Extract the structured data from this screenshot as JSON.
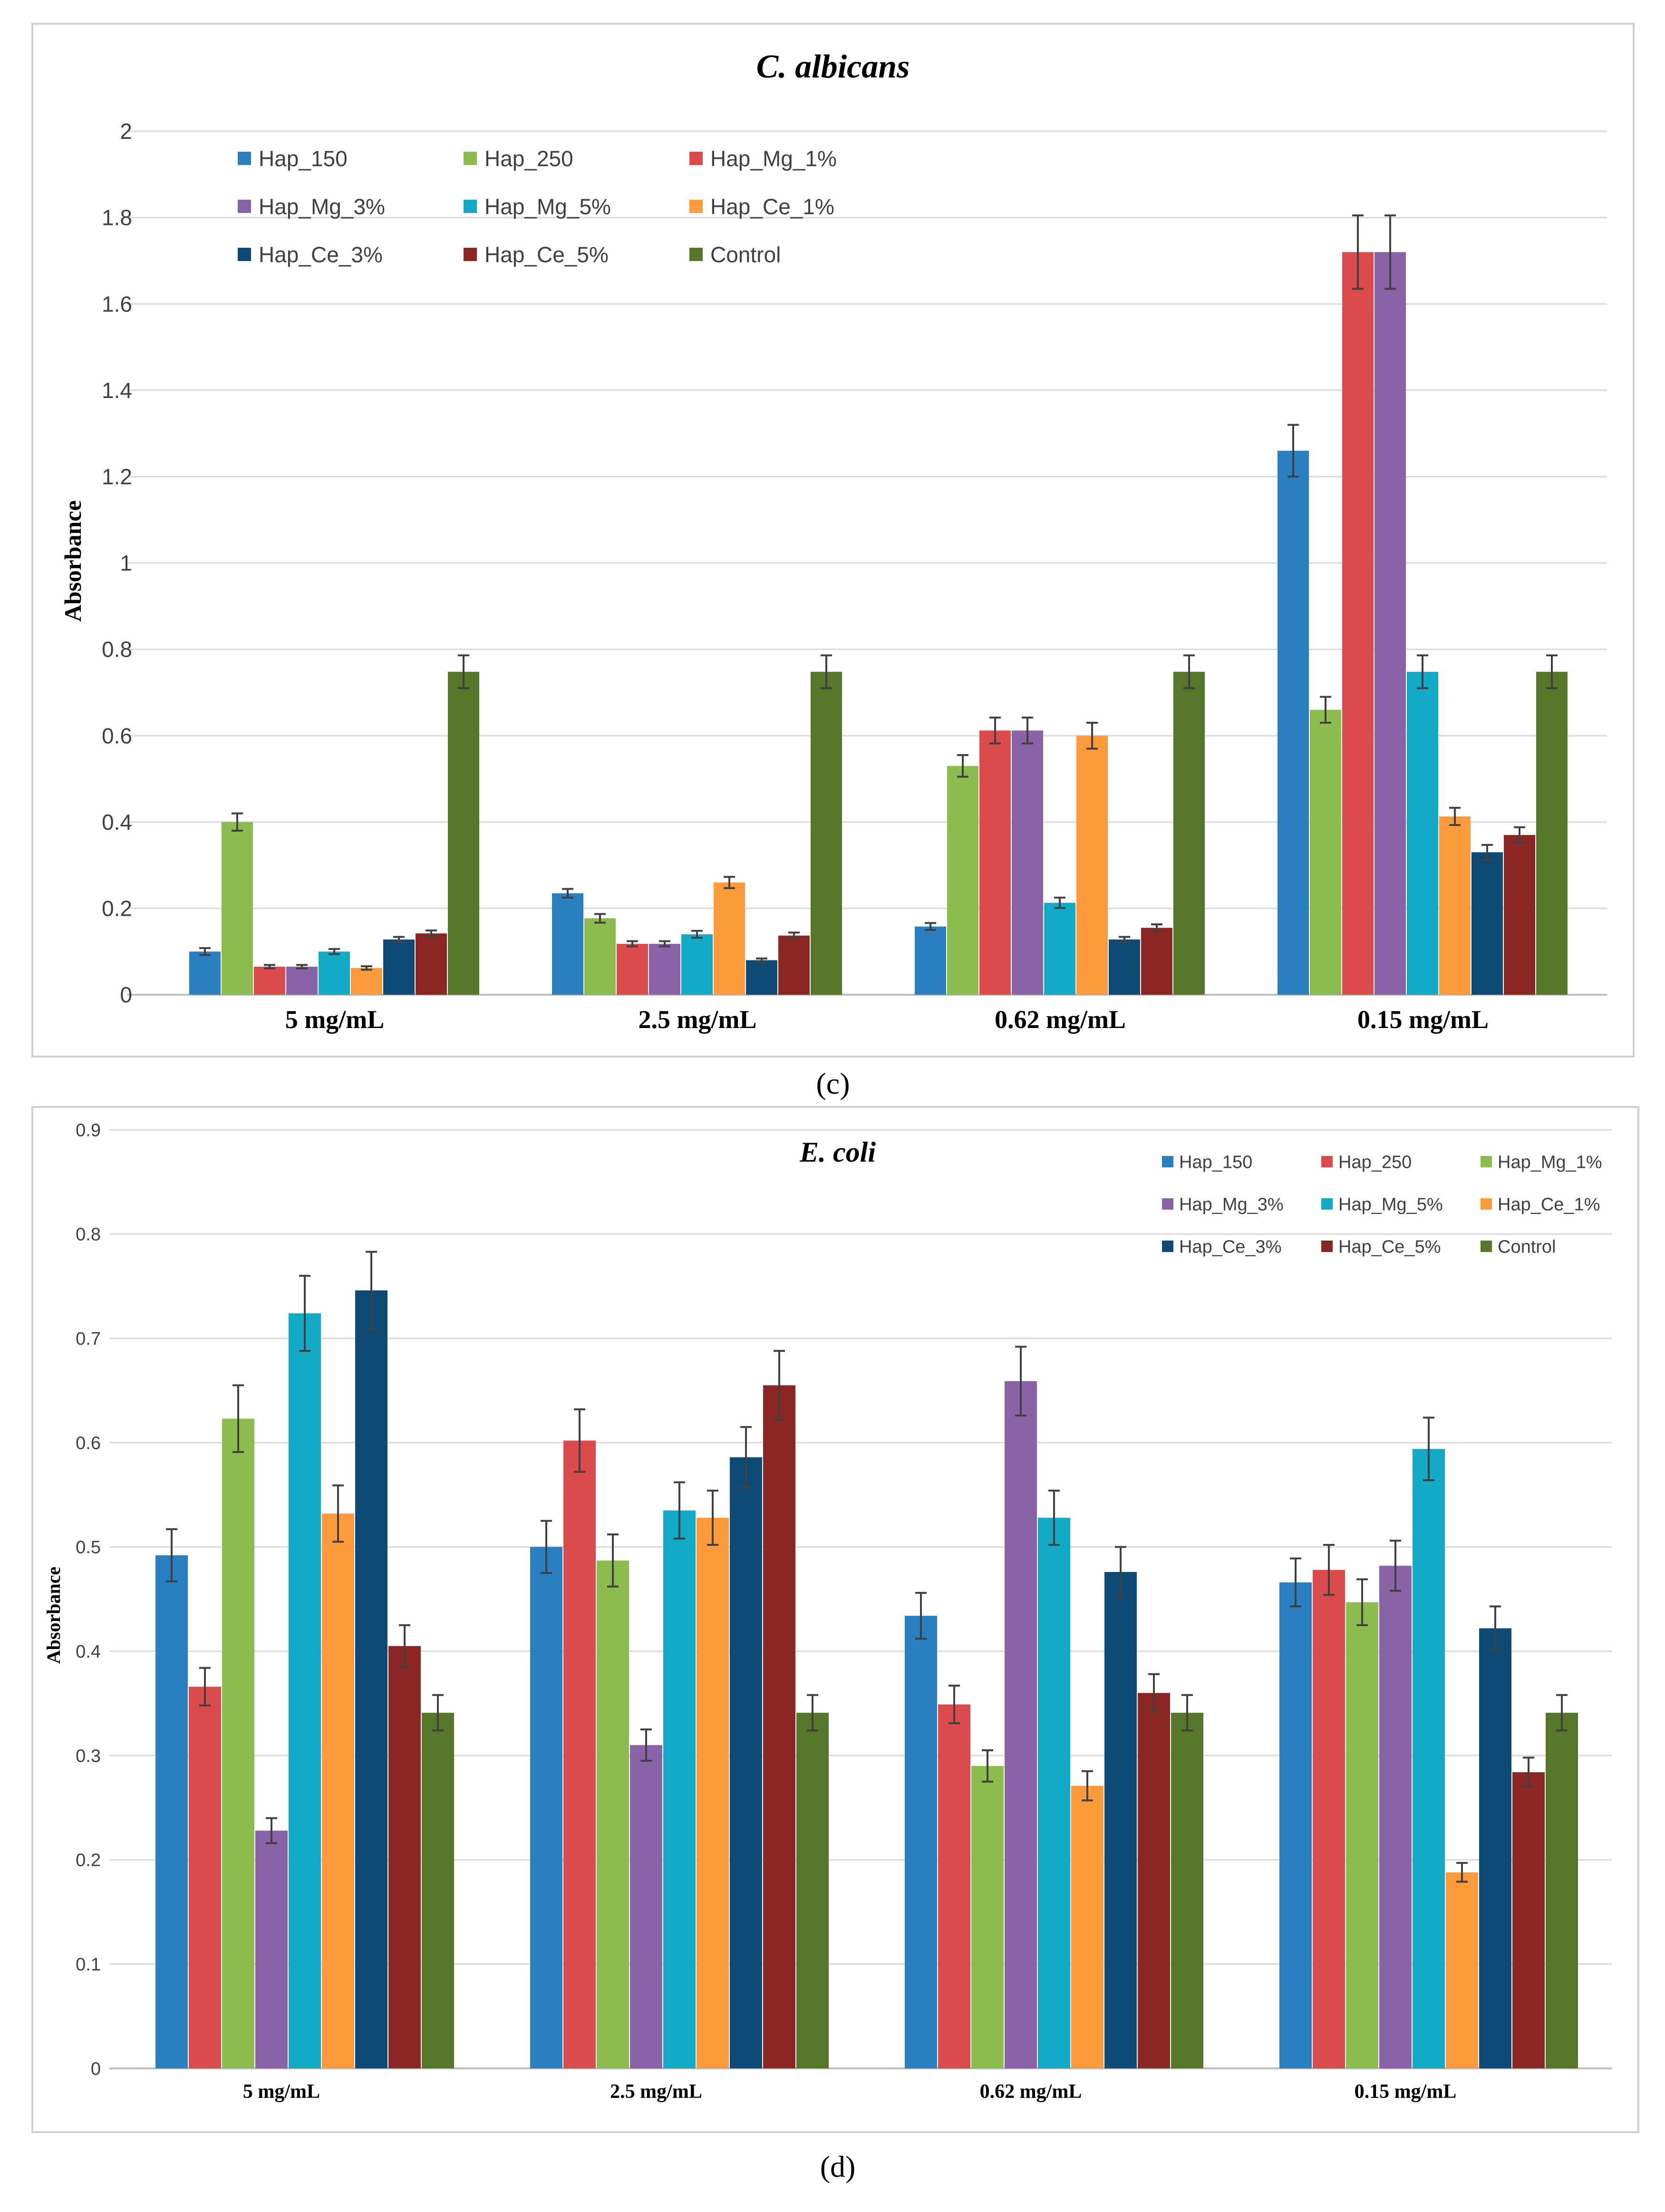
{
  "colors": {
    "Hap_150": "#2a7fc0",
    "Hap_250": "#db4b4b",
    "Hap_250_c": "#8cbb4e",
    "Hap_Mg_1%": "#8cbb4e",
    "Hap_Mg_1%_c": "#db4b4b",
    "Hap_Mg_3%": "#8a63a6",
    "Hap_Mg_5%": "#12aac6",
    "Hap_Ce_1%": "#fd9a3c",
    "Hap_Ce_3%": "#0d4a75",
    "Hap_Ce_5%": "#8c2625",
    "Control": "#56772a",
    "grid": "#d9d9d9",
    "axis_text": "#404040"
  },
  "chart_data": [
    {
      "type": "bar",
      "panel": "c",
      "title": "C. albicans",
      "caption": "(c)",
      "xlabel": "",
      "ylabel": "Absorbance",
      "ylim": [
        0,
        2
      ],
      "yticks": [
        "0",
        "0.2",
        "0.4",
        "0.6",
        "0.8",
        "1",
        "1.2",
        "1.4",
        "1.6",
        "1.8",
        "2"
      ],
      "grid": true,
      "legend": "top-left",
      "categories": [
        "5 mg/mL",
        "2.5 mg/mL",
        "0.62 mg/mL",
        "0.15 mg/mL"
      ],
      "series": [
        {
          "name": "Hap_150",
          "color": "#2a7fc0",
          "values": [
            0.1,
            0.235,
            0.158,
            1.26
          ],
          "errors": [
            0.008,
            0.01,
            0.008,
            0.06
          ]
        },
        {
          "name": "Hap_250",
          "color": "#8cbb4e",
          "values": [
            0.4,
            0.177,
            0.53,
            0.66
          ],
          "errors": [
            0.02,
            0.01,
            0.025,
            0.03
          ]
        },
        {
          "name": "Hap_Mg_1%",
          "color": "#db4b4b",
          "values": [
            0.065,
            0.118,
            0.612,
            1.72
          ],
          "errors": [
            0.004,
            0.006,
            0.03,
            0.085
          ]
        },
        {
          "name": "Hap_Mg_3%",
          "color": "#8a63a6",
          "values": [
            0.065,
            0.118,
            0.612,
            1.72
          ],
          "errors": [
            0.004,
            0.006,
            0.03,
            0.085
          ]
        },
        {
          "name": "Hap_Mg_5%",
          "color": "#12aac6",
          "values": [
            0.1,
            0.14,
            0.213,
            0.748
          ],
          "errors": [
            0.006,
            0.008,
            0.012,
            0.038
          ]
        },
        {
          "name": "Hap_Ce_1%",
          "color": "#fd9a3c",
          "values": [
            0.062,
            0.26,
            0.6,
            0.413
          ],
          "errors": [
            0.004,
            0.013,
            0.03,
            0.02
          ]
        },
        {
          "name": "Hap_Ce_3%",
          "color": "#0d4a75",
          "values": [
            0.128,
            0.08,
            0.128,
            0.33
          ],
          "errors": [
            0.006,
            0.004,
            0.006,
            0.017
          ]
        },
        {
          "name": "Hap_Ce_5%",
          "color": "#8c2625",
          "values": [
            0.142,
            0.137,
            0.155,
            0.37
          ],
          "errors": [
            0.007,
            0.007,
            0.008,
            0.018
          ]
        },
        {
          "name": "Control",
          "color": "#56772a",
          "values": [
            0.748,
            0.748,
            0.748,
            0.748
          ],
          "errors": [
            0.038,
            0.038,
            0.038,
            0.038
          ]
        }
      ]
    },
    {
      "type": "bar",
      "panel": "d",
      "title": "E. coli",
      "caption": "(d)",
      "xlabel": "",
      "ylabel": "Absorbance",
      "ylim": [
        0,
        0.9
      ],
      "yticks": [
        "0",
        "0.1",
        "0.2",
        "0.3",
        "0.4",
        "0.5",
        "0.6",
        "0.7",
        "0.8",
        "0.9"
      ],
      "grid": true,
      "legend": "top-right",
      "categories": [
        "5 mg/mL",
        "2.5 mg/mL",
        "0.62 mg/mL",
        "0.15 mg/mL"
      ],
      "series": [
        {
          "name": "Hap_150",
          "color": "#2a7fc0",
          "values": [
            0.492,
            0.5,
            0.434,
            0.466
          ],
          "errors": [
            0.025,
            0.025,
            0.022,
            0.023
          ]
        },
        {
          "name": "Hap_250",
          "color": "#db4b4b",
          "values": [
            0.366,
            0.602,
            0.349,
            0.478
          ],
          "errors": [
            0.018,
            0.03,
            0.018,
            0.024
          ]
        },
        {
          "name": "Hap_Mg_1%",
          "color": "#8cbb4e",
          "values": [
            0.623,
            0.487,
            0.29,
            0.447
          ],
          "errors": [
            0.032,
            0.025,
            0.015,
            0.022
          ]
        },
        {
          "name": "Hap_Mg_3%",
          "color": "#8a63a6",
          "values": [
            0.228,
            0.31,
            0.659,
            0.482
          ],
          "errors": [
            0.012,
            0.015,
            0.033,
            0.024
          ]
        },
        {
          "name": "Hap_Mg_5%",
          "color": "#12aac6",
          "values": [
            0.724,
            0.535,
            0.528,
            0.594
          ],
          "errors": [
            0.036,
            0.027,
            0.026,
            0.03
          ]
        },
        {
          "name": "Hap_Ce_1%",
          "color": "#fd9a3c",
          "values": [
            0.532,
            0.528,
            0.271,
            0.188
          ],
          "errors": [
            0.027,
            0.026,
            0.014,
            0.009
          ]
        },
        {
          "name": "Hap_Ce_3%",
          "color": "#0d4a75",
          "values": [
            0.746,
            0.586,
            0.476,
            0.422
          ],
          "errors": [
            0.037,
            0.029,
            0.024,
            0.021
          ]
        },
        {
          "name": "Hap_Ce_5%",
          "color": "#8c2625",
          "values": [
            0.405,
            0.655,
            0.36,
            0.284
          ],
          "errors": [
            0.02,
            0.033,
            0.018,
            0.014
          ]
        },
        {
          "name": "Control",
          "color": "#56772a",
          "values": [
            0.341,
            0.341,
            0.341,
            0.341
          ],
          "errors": [
            0.017,
            0.017,
            0.017,
            0.017
          ]
        }
      ]
    }
  ]
}
